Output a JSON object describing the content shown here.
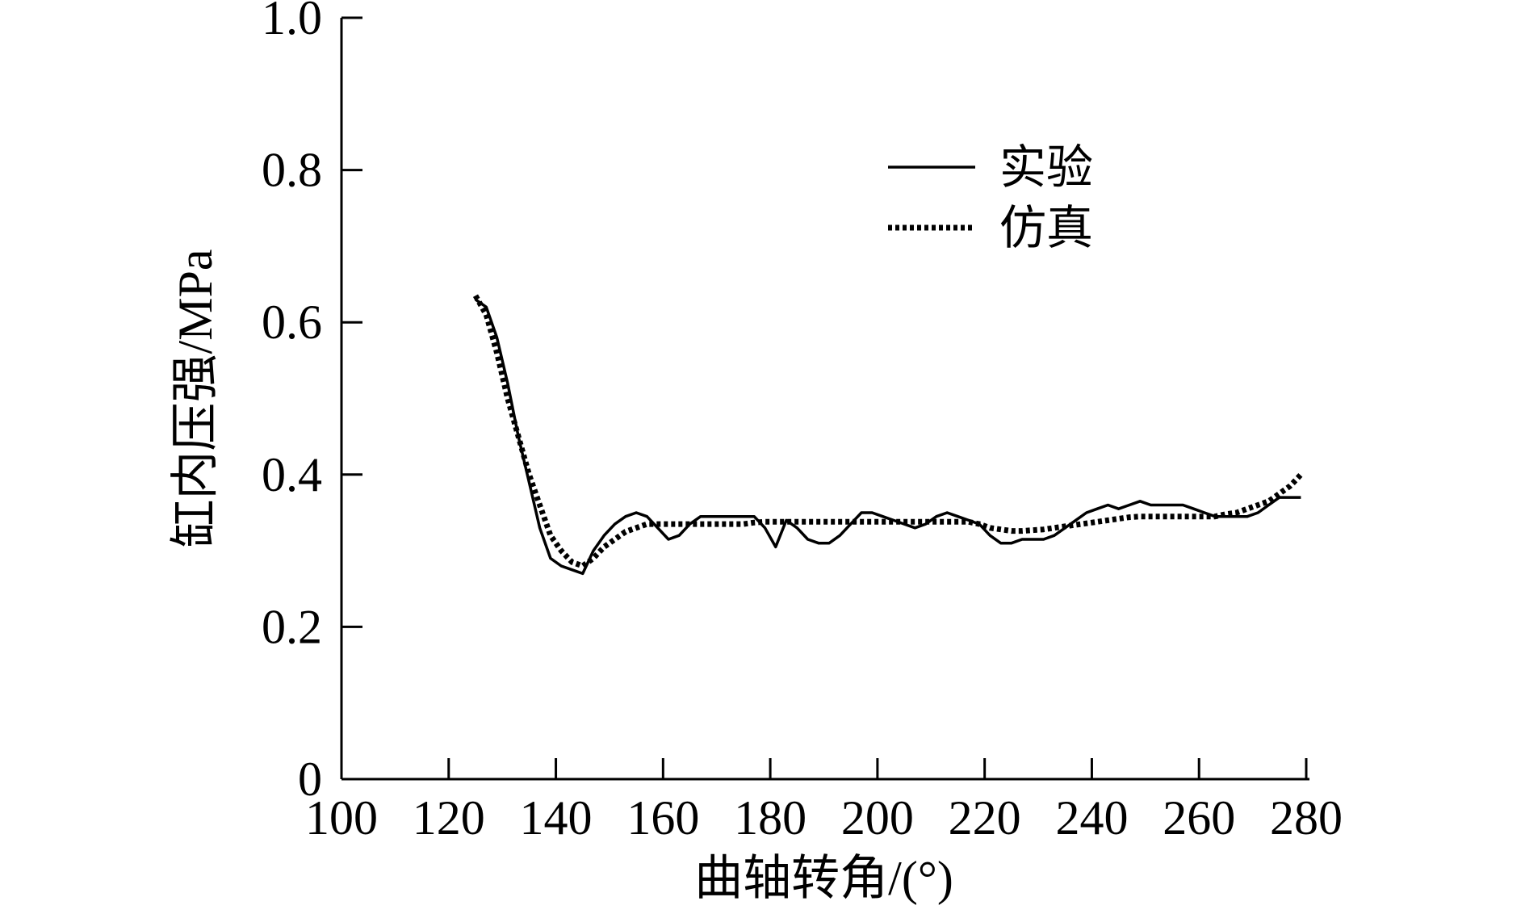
{
  "chart_data": {
    "type": "line",
    "title": "",
    "xlabel": "曲轴转角/(°)",
    "ylabel": "缸内压强/MPa",
    "xlim": [
      100,
      280
    ],
    "ylim": [
      0,
      1.0
    ],
    "x_ticks": [
      "100",
      "120",
      "140",
      "160",
      "180",
      "200",
      "220",
      "240",
      "260",
      "280"
    ],
    "y_ticks": [
      "0",
      "0.2",
      "0.4",
      "0.6",
      "0.8",
      "1.0"
    ],
    "grid": false,
    "legend_position": "top-right",
    "series": [
      {
        "name": "实验",
        "style": "solid",
        "color": "#000000",
        "x": [
          125,
          127,
          129,
          131,
          133,
          135,
          137,
          139,
          141,
          143,
          145,
          147,
          149,
          151,
          153,
          155,
          157,
          159,
          161,
          163,
          165,
          167,
          169,
          171,
          173,
          175,
          177,
          179,
          181,
          183,
          185,
          187,
          189,
          191,
          193,
          195,
          197,
          199,
          201,
          203,
          205,
          207,
          209,
          211,
          213,
          215,
          217,
          219,
          221,
          223,
          225,
          227,
          229,
          231,
          233,
          235,
          237,
          239,
          241,
          243,
          245,
          247,
          249,
          251,
          253,
          255,
          257,
          259,
          261,
          263,
          265,
          267,
          269,
          271,
          273,
          275,
          277,
          279
        ],
        "values": [
          0.63,
          0.62,
          0.58,
          0.52,
          0.45,
          0.39,
          0.33,
          0.29,
          0.28,
          0.275,
          0.27,
          0.3,
          0.32,
          0.335,
          0.345,
          0.35,
          0.345,
          0.33,
          0.315,
          0.32,
          0.335,
          0.345,
          0.345,
          0.345,
          0.345,
          0.345,
          0.345,
          0.33,
          0.305,
          0.34,
          0.33,
          0.315,
          0.31,
          0.31,
          0.32,
          0.335,
          0.35,
          0.35,
          0.345,
          0.34,
          0.335,
          0.33,
          0.335,
          0.345,
          0.35,
          0.345,
          0.34,
          0.335,
          0.32,
          0.31,
          0.31,
          0.315,
          0.315,
          0.315,
          0.32,
          0.33,
          0.34,
          0.35,
          0.355,
          0.36,
          0.355,
          0.36,
          0.365,
          0.36,
          0.36,
          0.36,
          0.36,
          0.355,
          0.35,
          0.345,
          0.345,
          0.345,
          0.345,
          0.35,
          0.36,
          0.37,
          0.37,
          0.37
        ]
      },
      {
        "name": "仿真",
        "style": "dotted",
        "color": "#000000",
        "x": [
          125,
          127,
          129,
          131,
          133,
          135,
          137,
          139,
          141,
          143,
          145,
          147,
          149,
          151,
          153,
          155,
          157,
          159,
          161,
          163,
          165,
          167,
          169,
          171,
          173,
          175,
          177,
          179,
          181,
          183,
          185,
          187,
          189,
          191,
          193,
          195,
          197,
          199,
          201,
          203,
          205,
          207,
          209,
          211,
          213,
          215,
          217,
          219,
          221,
          223,
          225,
          227,
          229,
          231,
          233,
          235,
          237,
          239,
          241,
          243,
          245,
          247,
          249,
          251,
          253,
          255,
          257,
          259,
          261,
          263,
          265,
          267,
          269,
          271,
          273,
          275,
          277,
          279
        ],
        "values": [
          0.635,
          0.61,
          0.56,
          0.5,
          0.45,
          0.4,
          0.36,
          0.32,
          0.3,
          0.285,
          0.28,
          0.29,
          0.305,
          0.315,
          0.325,
          0.33,
          0.335,
          0.335,
          0.335,
          0.335,
          0.335,
          0.335,
          0.335,
          0.335,
          0.335,
          0.335,
          0.337,
          0.338,
          0.338,
          0.338,
          0.338,
          0.338,
          0.338,
          0.338,
          0.338,
          0.338,
          0.338,
          0.338,
          0.338,
          0.338,
          0.338,
          0.338,
          0.338,
          0.338,
          0.338,
          0.338,
          0.338,
          0.335,
          0.33,
          0.328,
          0.326,
          0.326,
          0.327,
          0.328,
          0.33,
          0.332,
          0.334,
          0.336,
          0.338,
          0.34,
          0.342,
          0.344,
          0.345,
          0.345,
          0.345,
          0.345,
          0.345,
          0.345,
          0.345,
          0.345,
          0.348,
          0.35,
          0.355,
          0.36,
          0.365,
          0.375,
          0.385,
          0.4
        ]
      }
    ]
  }
}
